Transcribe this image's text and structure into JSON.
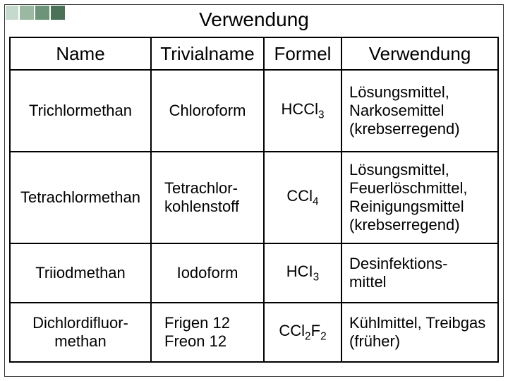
{
  "title": "Verwendung",
  "deco_colors": [
    "#c5d9cc",
    "#9bb8a2",
    "#6b9478",
    "#4a7256"
  ],
  "headers": {
    "name": "Name",
    "trivial": "Trivialname",
    "formel": "Formel",
    "verwendung": "Verwendung"
  },
  "rows": [
    {
      "name": "Trichlormethan",
      "trivial": "Chloroform",
      "formel_html": "HCCl<sub>3</sub>",
      "verwendung": "Lösungsmittel, Narkosemittel (krebserregend)"
    },
    {
      "name": "Tetrachlormethan",
      "trivial": "Tetrachlor-\nkohlenstoff",
      "formel_html": "CCl<sub>4</sub>",
      "verwendung": "Lösungsmittel, Feuerlöschmittel, Reinigungsmittel (krebserregend)"
    },
    {
      "name": "Triiodmethan",
      "trivial": "Iodoform",
      "formel_html": "HCI<sub>3</sub>",
      "verwendung": "Desinfektions-\nmittel"
    },
    {
      "name": "Dichlordifluor-\nmethan",
      "trivial": "Frigen 12\nFreon 12",
      "formel_html": "CCl<sub>2</sub>F<sub>2</sub>",
      "verwendung": "Kühlmittel, Treibgas (früher)"
    }
  ]
}
